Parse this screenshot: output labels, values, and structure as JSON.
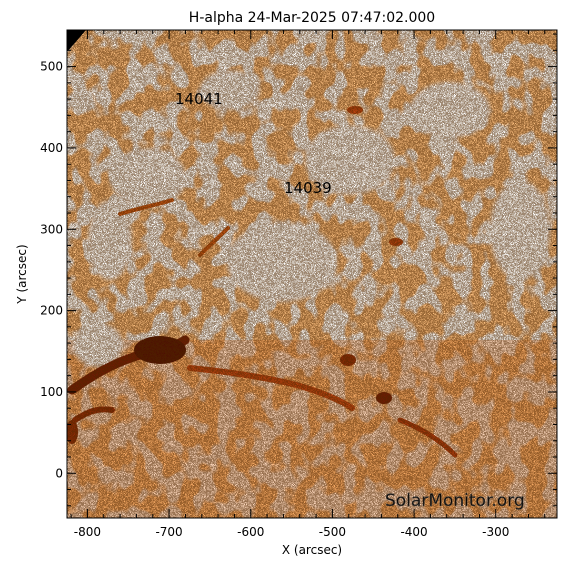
{
  "title": "H-alpha 24-Mar-2025 07:47:02.000",
  "axes": {
    "xlabel": "X (arcsec)",
    "ylabel": "Y (arcsec)",
    "xticks": [
      "-800",
      "-700",
      "-600",
      "-500",
      "-400",
      "-300"
    ],
    "yticks": [
      "0",
      "100",
      "200",
      "300",
      "400",
      "500"
    ]
  },
  "regions": [
    {
      "label": "14041"
    },
    {
      "label": "14039"
    }
  ],
  "watermark": "SolarMonitor.org",
  "colors": {
    "background": "#ffffff",
    "chromosphere_light": "#f08a3c",
    "chromosphere_mid": "#e06a1a",
    "plage_dark": "#9a2c06",
    "filament": "#5a1404",
    "noise": "#140600"
  }
}
